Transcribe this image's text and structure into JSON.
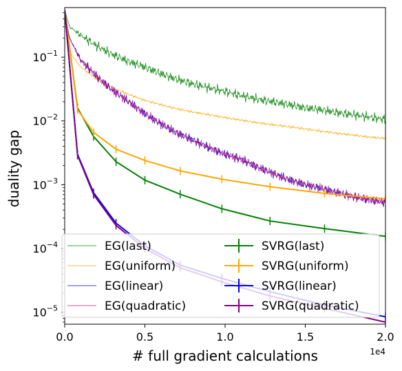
{
  "chart_data": {
    "type": "line",
    "title": "",
    "xlabel": "# full gradient calculations",
    "ylabel": "duality gap",
    "x_offset_label": "1e4",
    "xlim": [
      0,
      20000
    ],
    "ylim": [
      6.5e-06,
      0.6
    ],
    "yscale": "log",
    "grid": false,
    "legend_position": "lower-center",
    "x_ticks": [
      {
        "value": 0,
        "label": "0.0"
      },
      {
        "value": 5000,
        "label": "0.5"
      },
      {
        "value": 10000,
        "label": "1.0"
      },
      {
        "value": 15000,
        "label": "1.5"
      },
      {
        "value": 20000,
        "label": "2.0"
      }
    ],
    "y_ticks": [
      {
        "value": 1e-05,
        "base": "10",
        "exp": "−5"
      },
      {
        "value": 0.0001,
        "base": "10",
        "exp": "−4"
      },
      {
        "value": 0.001,
        "base": "10",
        "exp": "−3"
      },
      {
        "value": 0.01,
        "base": "10",
        "exp": "−2"
      },
      {
        "value": 0.1,
        "base": "10",
        "exp": "−1"
      }
    ],
    "series": [
      {
        "name": "EG(last)",
        "color": "#008000",
        "style": "thin",
        "x": [
          0,
          300,
          1000,
          2000,
          3000,
          4000,
          5000,
          6000,
          7000,
          8000,
          9000,
          10000,
          11000,
          12000,
          13000,
          14000,
          15000,
          16000,
          17000,
          18000,
          19000,
          20000
        ],
        "values": [
          0.55,
          0.3,
          0.22,
          0.15,
          0.11,
          0.085,
          0.07,
          0.055,
          0.045,
          0.038,
          0.033,
          0.029,
          0.025,
          0.022,
          0.02,
          0.018,
          0.016,
          0.015,
          0.0135,
          0.0125,
          0.0115,
          0.0105
        ]
      },
      {
        "name": "EG(uniform)",
        "color": "#ffa500",
        "style": "thin",
        "x": [
          0,
          300,
          1000,
          2000,
          3000,
          4000,
          5000,
          6000,
          7000,
          8000,
          9000,
          10000,
          11000,
          12000,
          13000,
          14000,
          15000,
          16000,
          17000,
          18000,
          19000,
          20000
        ],
        "values": [
          0.55,
          0.12,
          0.07,
          0.045,
          0.033,
          0.026,
          0.021,
          0.018,
          0.0155,
          0.0138,
          0.0125,
          0.0113,
          0.0103,
          0.0094,
          0.0087,
          0.0081,
          0.0075,
          0.0069,
          0.0064,
          0.006,
          0.0056,
          0.0053
        ]
      },
      {
        "name": "EG(linear)",
        "color": "#0000cd",
        "style": "thin",
        "x": [
          0,
          300,
          1000,
          2000,
          3000,
          4000,
          5000,
          6000,
          7000,
          8000,
          9000,
          10000,
          11000,
          12000,
          13000,
          14000,
          15000,
          16000,
          17000,
          18000,
          19000,
          20000
        ],
        "values": [
          0.55,
          0.2,
          0.09,
          0.05,
          0.03,
          0.02,
          0.013,
          0.009,
          0.0065,
          0.005,
          0.0038,
          0.003,
          0.0025,
          0.0019,
          0.0015,
          0.0012,
          0.001,
          0.00088,
          0.00075,
          0.00065,
          0.00058,
          0.00053
        ]
      },
      {
        "name": "EG(quadratic)",
        "color": "#c71585",
        "style": "thin",
        "x": [
          0,
          300,
          1000,
          2000,
          3000,
          4000,
          5000,
          6000,
          7000,
          8000,
          9000,
          10000,
          11000,
          12000,
          13000,
          14000,
          15000,
          16000,
          17000,
          18000,
          19000,
          20000
        ],
        "values": [
          0.55,
          0.2,
          0.09,
          0.05,
          0.03,
          0.02,
          0.013,
          0.009,
          0.0065,
          0.005,
          0.0038,
          0.003,
          0.0025,
          0.0019,
          0.0015,
          0.0012,
          0.001,
          0.00088,
          0.00075,
          0.00065,
          0.00058,
          0.00053
        ]
      },
      {
        "name": "SVRG(last)",
        "color": "#008000",
        "style": "errorbar",
        "x": [
          0,
          800,
          1800,
          3200,
          5000,
          7200,
          9800,
          12800,
          16200,
          20000
        ],
        "values": [
          0.55,
          0.016,
          0.0057,
          0.0023,
          0.00118,
          0.00071,
          0.00042,
          0.00027,
          0.000205,
          0.000155
        ]
      },
      {
        "name": "SVRG(uniform)",
        "color": "#ffa500",
        "style": "errorbar",
        "x": [
          0,
          800,
          1800,
          3200,
          5000,
          7200,
          9800,
          12800,
          16200,
          20000
        ],
        "values": [
          0.55,
          0.015,
          0.0066,
          0.0036,
          0.0024,
          0.00165,
          0.00122,
          0.00093,
          0.00073,
          0.0006
        ]
      },
      {
        "name": "SVRG(linear)",
        "color": "#0000ff",
        "style": "errorbar",
        "x": [
          0,
          800,
          1800,
          3200,
          5000,
          7200,
          9800,
          12800,
          16200,
          20000
        ],
        "values": [
          0.55,
          0.003,
          0.00075,
          0.00025,
          0.00011,
          5.5e-05,
          3.4e-05,
          2.1e-05,
          1.3e-05,
          8.5e-06
        ]
      },
      {
        "name": "SVRG(quadratic)",
        "color": "#800080",
        "style": "errorbar",
        "x": [
          0,
          800,
          1800,
          3200,
          5000,
          7200,
          9800,
          12800,
          16200,
          20000
        ],
        "values": [
          0.55,
          0.0029,
          0.0007,
          0.00023,
          0.0001,
          5e-05,
          3e-05,
          1.8e-05,
          1.15e-05,
          7e-06
        ]
      }
    ]
  }
}
